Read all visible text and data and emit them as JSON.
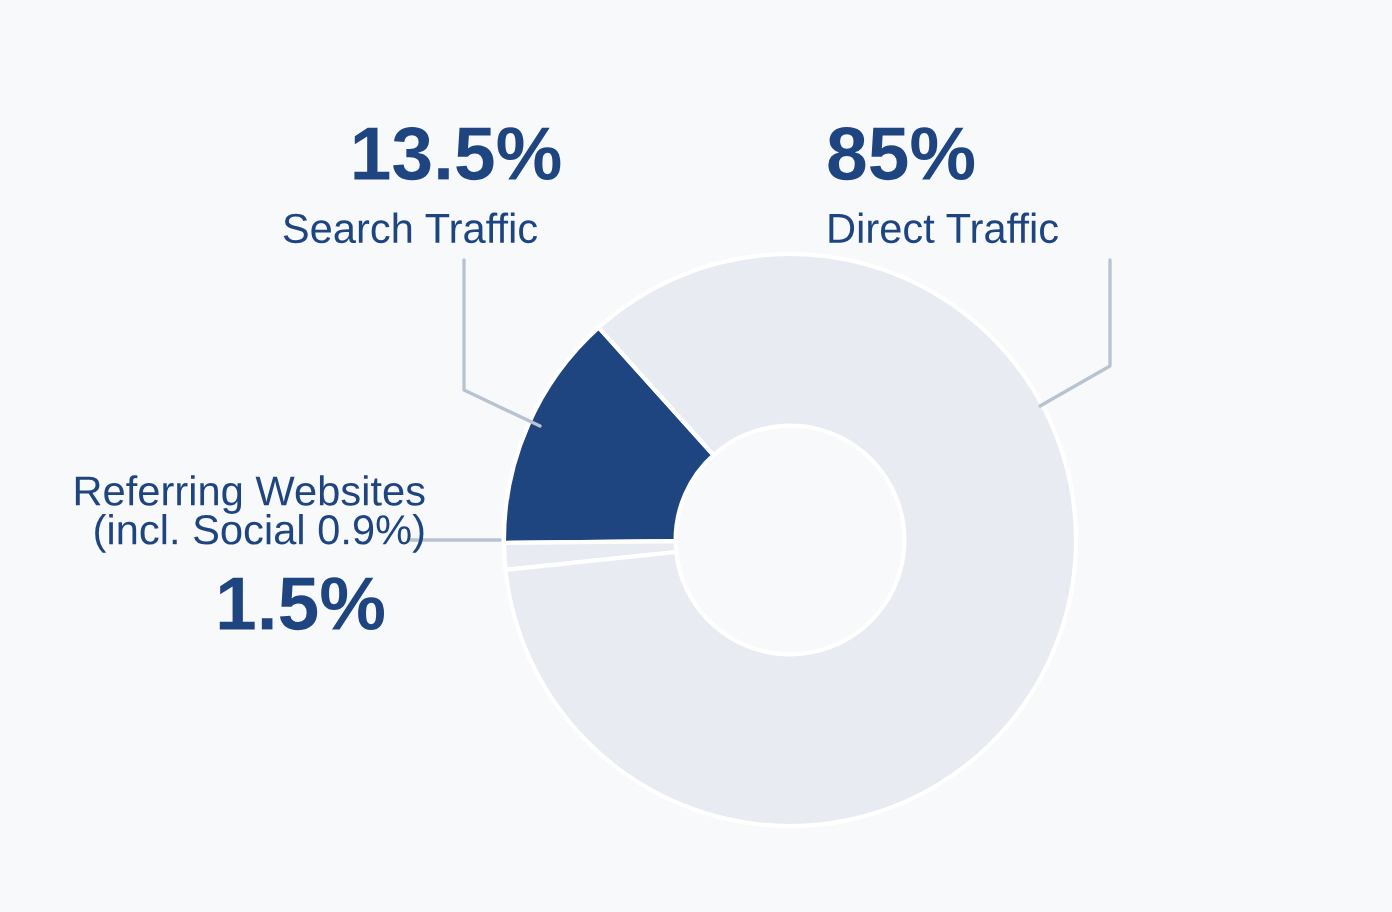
{
  "chart_data": {
    "type": "donut",
    "categories": [
      "Search Traffic",
      "Referring Websites\n(incl. Social 0.9%)",
      "Direct Traffic"
    ],
    "values": [
      13.5,
      1.5,
      85
    ],
    "colors": [
      "#1f4580",
      "#e8ecf2",
      "#e8ecf2"
    ],
    "value_labels": [
      "13.5%",
      "1.5%",
      "85%"
    ]
  }
}
